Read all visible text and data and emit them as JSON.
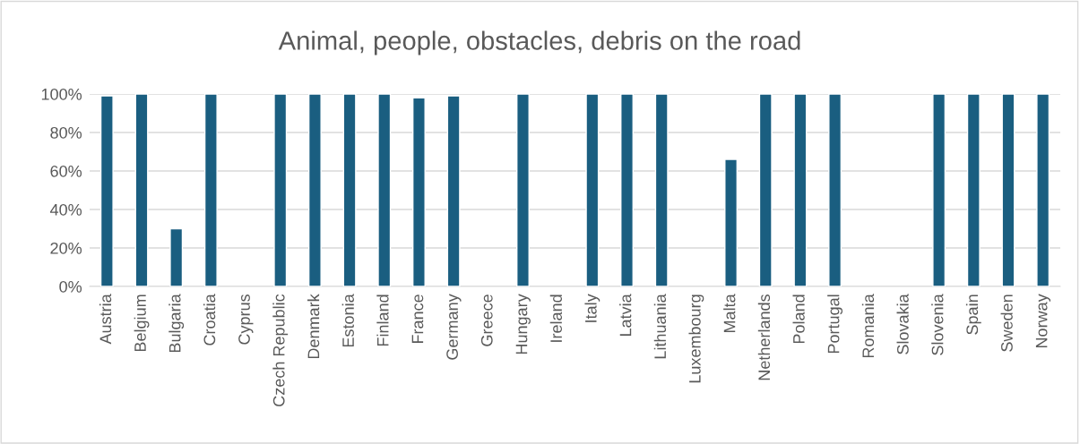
{
  "chart_data": {
    "type": "bar",
    "title": "Animal, people, obstacles, debris on the road",
    "categories": [
      "Austria",
      "Belgium",
      "Bulgaria",
      "Croatia",
      "Cyprus",
      "Czech Republic",
      "Denmark",
      "Estonia",
      "Finland",
      "France",
      "Germany",
      "Greece",
      "Hungary",
      "Ireland",
      "Italy",
      "Latvia",
      "Lithuania",
      "Luxembourg",
      "Malta",
      "Netherlands",
      "Poland",
      "Portugal",
      "Romania",
      "Slovakia",
      "Slovenia",
      "Spain",
      "Sweden",
      "Norway"
    ],
    "values": [
      99,
      100,
      30,
      100,
      null,
      100,
      100,
      100,
      100,
      98,
      99,
      null,
      100,
      null,
      100,
      100,
      100,
      null,
      66,
      100,
      100,
      100,
      null,
      null,
      100,
      100,
      100,
      100
    ],
    "color": "#1a5e80",
    "ylim": [
      0,
      100
    ],
    "yticks": [
      {
        "value": 0,
        "label": "0%"
      },
      {
        "value": 20,
        "label": "20%"
      },
      {
        "value": 40,
        "label": "40%"
      },
      {
        "value": 60,
        "label": "60%"
      },
      {
        "value": 80,
        "label": "80%"
      },
      {
        "value": 100,
        "label": "100%"
      }
    ],
    "grid": "y",
    "legend": false
  }
}
